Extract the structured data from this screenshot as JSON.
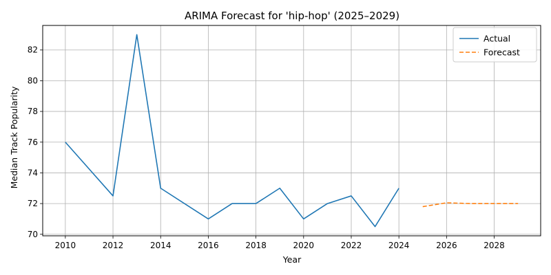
{
  "chart_data": {
    "type": "line",
    "title": "ARIMA Forecast for 'hip-hop' (2025–2029)",
    "xlabel": "Year",
    "ylabel": "Median Track Popularity",
    "xlim": [
      2009.05,
      2029.95
    ],
    "ylim": [
      69.9,
      83.6
    ],
    "x_ticks": [
      2010,
      2012,
      2014,
      2016,
      2018,
      2020,
      2022,
      2024,
      2026,
      2028
    ],
    "y_ticks": [
      70,
      72,
      74,
      76,
      78,
      80,
      82
    ],
    "grid": true,
    "legend_position": "top-right",
    "series": [
      {
        "name": "Actual",
        "color": "#1f77b4",
        "style": "solid",
        "x": [
          2010,
          2012,
          2013,
          2014,
          2016,
          2017,
          2018,
          2019,
          2020,
          2021,
          2022,
          2023,
          2024
        ],
        "y": [
          76,
          72.5,
          83,
          73,
          71,
          72,
          72,
          73,
          71,
          72,
          72.5,
          70.5,
          73
        ]
      },
      {
        "name": "Forecast",
        "color": "#ff7f0e",
        "style": "dashed",
        "x": [
          2025,
          2026,
          2027,
          2028,
          2029
        ],
        "y": [
          71.8,
          72.05,
          72.0,
          72.0,
          72.0
        ]
      }
    ]
  }
}
